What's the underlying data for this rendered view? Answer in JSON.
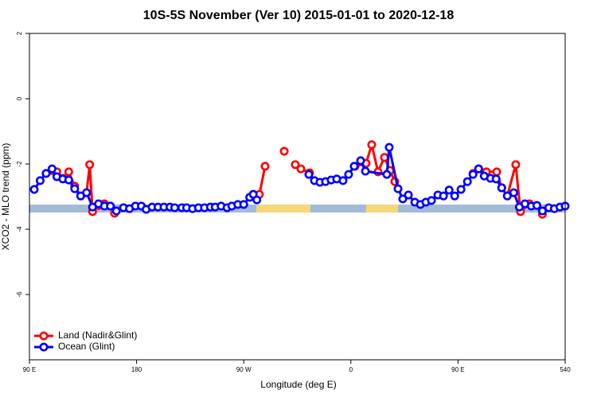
{
  "chart_data": {
    "type": "line",
    "title": "10S-5S November (Ver 10)   2015-01-01 to 2020-12-18",
    "x_label": "Longitude (deg E)",
    "y_label": "XCO2 - MLO trend (ppm)",
    "xlim": [
      90,
      540
    ],
    "xticks": [
      {
        "value": 90,
        "label": "90 E"
      },
      180,
      {
        "value": 270,
        "label": "90 W"
      },
      {
        "value": 360,
        "label": "0"
      },
      {
        "value": 450,
        "label": "90 E"
      },
      540
    ],
    "ylim": [
      -8,
      2
    ],
    "yticks": [
      -6,
      -4,
      -2,
      0,
      2
    ],
    "legend": "bottom-left",
    "series": [
      {
        "name": "Land (Nadir&Glint)",
        "color": "#ff0000",
        "x": [
          104,
          109,
          113,
          118,
          123,
          128,
          133,
          138,
          140.6,
          143,
          148,
          153,
          158,
          161.5,
          null,
          278,
          283.2,
          287.9,
          null,
          304,
          null,
          313.3,
          318,
          325.3,
          null,
          363.5,
          372.8,
          377.5,
          382.8,
          388.2,
          392.9,
          396.9,
          null,
          462.6,
          467.3,
          473.8,
          482.5,
          486.7,
          491.4,
          498.5,
          502.5,
          509.9,
          516.2,
          520.9
        ],
        "values": [
          -2.29,
          -2.2,
          -2.24,
          -2.44,
          -2.24,
          -2.68,
          -2.98,
          -2.88,
          -2.02,
          -3.46,
          -3.27,
          -3.22,
          -3.29,
          -3.51,
          null,
          -2.93,
          -2.93,
          -2.07,
          null,
          -1.61,
          null,
          -2.02,
          -2.15,
          -2.27,
          null,
          -2.07,
          -1.98,
          -1.41,
          -2.24,
          -1.8,
          -2.2,
          -2.54,
          null,
          -2.29,
          -2.15,
          -2.24,
          -2.24,
          -2.73,
          -2.98,
          -2.02,
          -3.46,
          -3.22,
          -3.27,
          -3.54
        ]
      },
      {
        "name": "Ocean (Glint)",
        "color": "#0000ff",
        "x": [
          94,
          99,
          104,
          109,
          113,
          118,
          123,
          128,
          133,
          138,
          143,
          148,
          153,
          158,
          163,
          169,
          174,
          179,
          184,
          188,
          193,
          198,
          203,
          208,
          212,
          218,
          222,
          227,
          232,
          237,
          242,
          246,
          251,
          256,
          260,
          265,
          270,
          275,
          278,
          281,
          null,
          324.7,
          329.4,
          334,
          338.7,
          343.4,
          348.1,
          353.4,
          358.1,
          362.8,
          368.2,
          372.2,
          390.2,
          392.2,
          399.6,
          403.6,
          408.3,
          413.7,
          418.4,
          423,
          427.7,
          433.1,
          437.8,
          442.5,
          447.2,
          452.5,
          457.9,
          462.6,
          467.3,
          472,
          477.3,
          482,
          486.7,
          491.4,
          496.8,
          501.5,
          506.2,
          511.5,
          516.2,
          520.9,
          526.2,
          530.9,
          535.6,
          540
        ],
        "values": [
          -2.78,
          -2.51,
          -2.29,
          -2.15,
          -2.39,
          -2.46,
          -2.49,
          -2.76,
          -2.98,
          -2.88,
          -3.32,
          -3.22,
          -3.29,
          -3.29,
          -3.44,
          -3.34,
          -3.37,
          -3.29,
          -3.29,
          -3.39,
          -3.32,
          -3.32,
          -3.32,
          -3.32,
          -3.34,
          -3.34,
          -3.34,
          -3.37,
          -3.34,
          -3.34,
          -3.32,
          -3.32,
          -3.29,
          -3.34,
          -3.29,
          -3.24,
          -3.24,
          -3.02,
          -2.93,
          -3.1,
          null,
          -2.32,
          -2.51,
          -2.56,
          -2.54,
          -2.49,
          -2.46,
          -2.51,
          -2.32,
          -2.07,
          -1.9,
          -2.22,
          -2.32,
          -1.49,
          -2.76,
          -3.07,
          -2.95,
          -3.17,
          -3.24,
          -3.17,
          -3.12,
          -2.95,
          -2.98,
          -2.8,
          -2.98,
          -2.78,
          -2.54,
          -2.32,
          -2.15,
          -2.37,
          -2.44,
          -2.46,
          -2.73,
          -2.98,
          -2.88,
          -3.32,
          -3.22,
          -3.29,
          -3.27,
          -3.44,
          -3.34,
          -3.37,
          -3.32,
          -3.29
        ]
      }
    ]
  }
}
